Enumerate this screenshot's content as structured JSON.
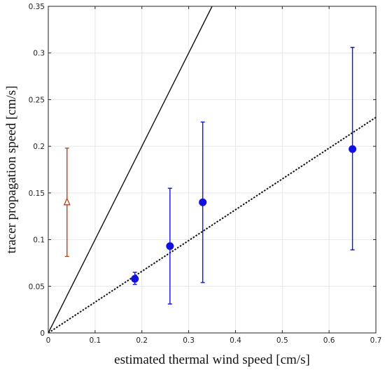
{
  "chart_data": {
    "type": "scatter",
    "title": "",
    "xlabel": "estimated thermal wind speed [cm/s]",
    "ylabel": "tracer propagation speed [cm/s]",
    "xlim": [
      0,
      0.7
    ],
    "ylim": [
      0,
      0.35
    ],
    "x_ticks": [
      0,
      0.1,
      0.2,
      0.3,
      0.4,
      0.5,
      0.6,
      0.7
    ],
    "x_tick_labels": [
      "0",
      "0.1",
      "0.2",
      "0.3",
      "0.4",
      "0.5",
      "0.6",
      "0.7"
    ],
    "y_ticks": [
      0,
      0.05,
      0.1,
      0.15,
      0.2,
      0.25,
      0.3,
      0.35
    ],
    "y_tick_labels": [
      "0",
      "0.05",
      "0.1",
      "0.15",
      "0.2",
      "0.25",
      "0.3",
      "0.35"
    ],
    "grid": true,
    "legend": "none",
    "series": [
      {
        "marker": "filled-circle",
        "color": "#1010e0",
        "points": [
          {
            "x": 0.185,
            "y": 0.058,
            "ylow": 0.052,
            "yhigh": 0.065
          },
          {
            "x": 0.26,
            "y": 0.093,
            "ylow": 0.031,
            "yhigh": 0.155
          },
          {
            "x": 0.33,
            "y": 0.14,
            "ylow": 0.054,
            "yhigh": 0.226
          },
          {
            "x": 0.65,
            "y": 0.197,
            "ylow": 0.089,
            "yhigh": 0.306
          }
        ]
      },
      {
        "marker": "open-triangle",
        "color": "#b5451b",
        "points": [
          {
            "x": 0.04,
            "y": 0.14,
            "ylow": 0.082,
            "yhigh": 0.198
          }
        ]
      }
    ],
    "reference_lines": [
      {
        "style": "solid",
        "color": "#111111",
        "slope": 1.0
      },
      {
        "style": "dotted",
        "color": "#111111",
        "slope": 0.33
      }
    ]
  }
}
